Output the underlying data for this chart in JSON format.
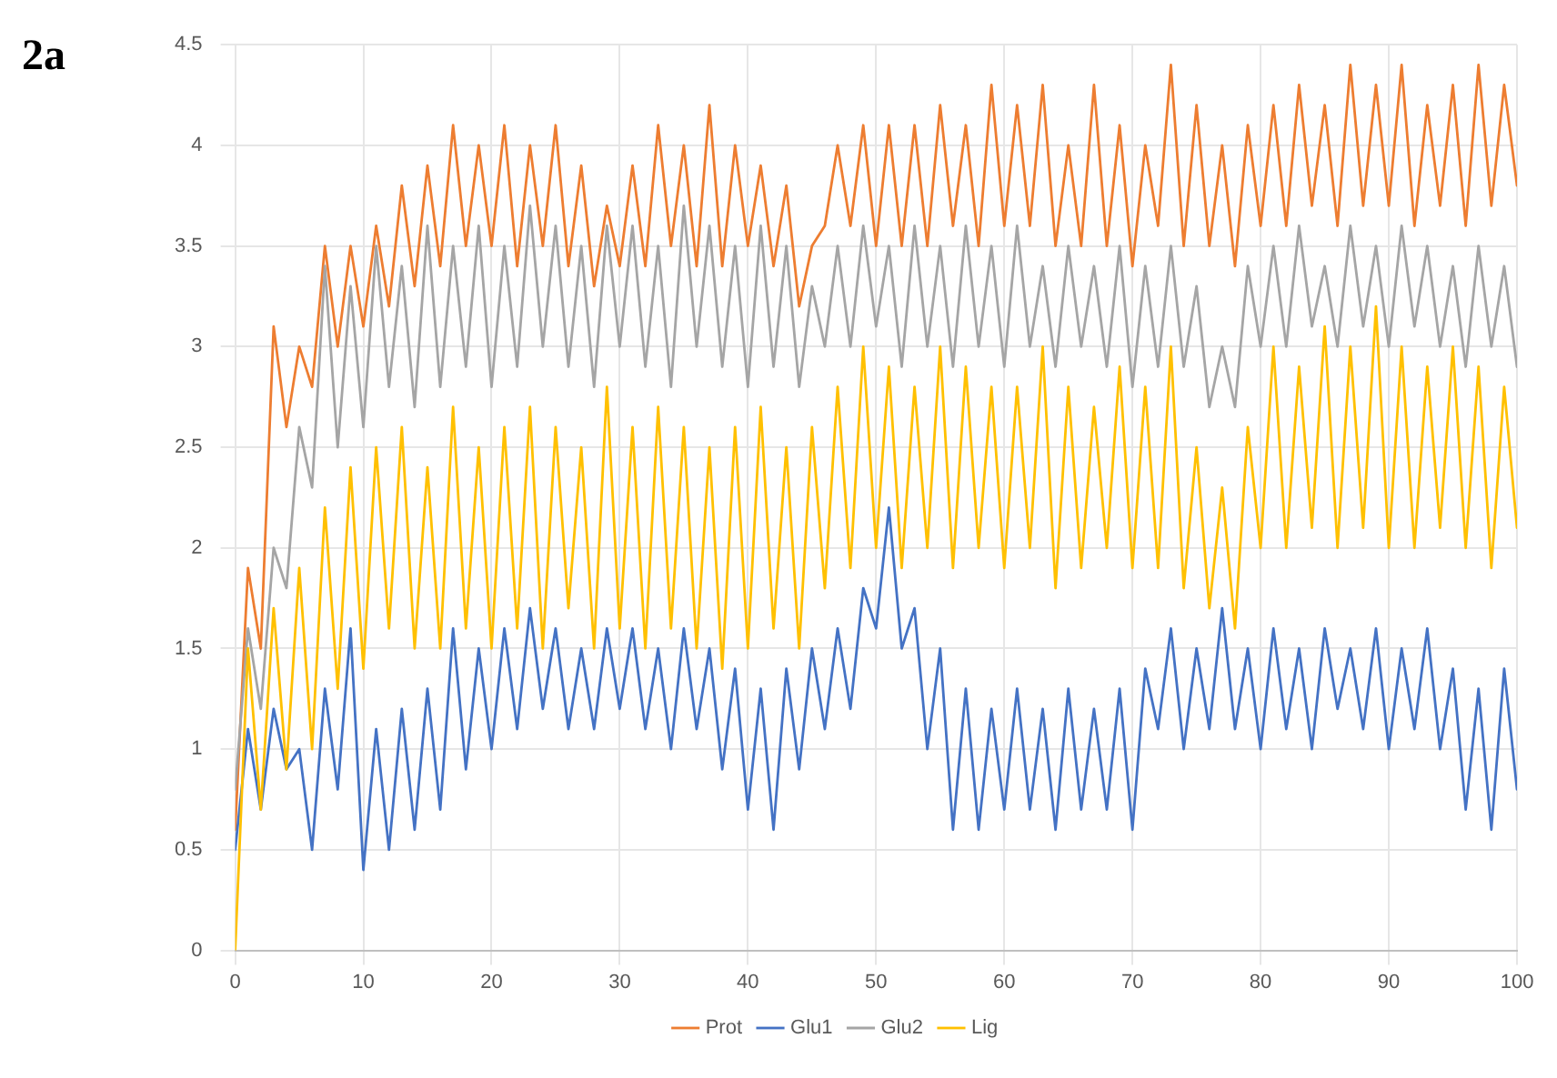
{
  "chart_data": {
    "type": "line",
    "annotations": [
      "2a"
    ],
    "x": [
      0,
      1,
      2,
      3,
      4,
      5,
      6,
      7,
      8,
      9,
      10,
      11,
      12,
      13,
      14,
      15,
      16,
      17,
      18,
      19,
      20,
      21,
      22,
      23,
      24,
      25,
      26,
      27,
      28,
      29,
      30,
      31,
      32,
      33,
      34,
      35,
      36,
      37,
      38,
      39,
      40,
      41,
      42,
      43,
      44,
      45,
      46,
      47,
      48,
      49,
      50,
      51,
      52,
      53,
      54,
      55,
      56,
      57,
      58,
      59,
      60,
      61,
      62,
      63,
      64,
      65,
      66,
      67,
      68,
      69,
      70,
      71,
      72,
      73,
      74,
      75,
      76,
      77,
      78,
      79,
      80,
      81,
      82,
      83,
      84,
      85,
      86,
      87,
      88,
      89,
      90,
      91,
      92,
      93,
      94,
      95,
      96,
      97,
      98,
      99,
      100
    ],
    "series": [
      {
        "name": "Prot",
        "color": "#ed7d31",
        "values": [
          0.6,
          1.9,
          1.5,
          3.1,
          2.6,
          3.0,
          2.8,
          3.5,
          3.0,
          3.5,
          3.1,
          3.6,
          3.2,
          3.8,
          3.3,
          3.9,
          3.4,
          4.1,
          3.5,
          4.0,
          3.5,
          4.1,
          3.4,
          4.0,
          3.5,
          4.1,
          3.4,
          3.9,
          3.3,
          3.7,
          3.4,
          3.9,
          3.4,
          4.1,
          3.5,
          4.0,
          3.4,
          4.2,
          3.4,
          4.0,
          3.5,
          3.9,
          3.4,
          3.8,
          3.2,
          3.5,
          3.6,
          4.0,
          3.6,
          4.1,
          3.5,
          4.1,
          3.5,
          4.1,
          3.5,
          4.2,
          3.6,
          4.1,
          3.5,
          4.3,
          3.6,
          4.2,
          3.6,
          4.3,
          3.5,
          4.0,
          3.5,
          4.3,
          3.5,
          4.1,
          3.4,
          4.0,
          3.6,
          4.4,
          3.5,
          4.2,
          3.5,
          4.0,
          3.4,
          4.1,
          3.6,
          4.2,
          3.6,
          4.3,
          3.7,
          4.2,
          3.6,
          4.4,
          3.7,
          4.3,
          3.7,
          4.4,
          3.6,
          4.2,
          3.7,
          4.3,
          3.6,
          4.4,
          3.7,
          4.3,
          3.8
        ]
      },
      {
        "name": "Glu1",
        "color": "#4472c4",
        "values": [
          0.5,
          1.1,
          0.7,
          1.2,
          0.9,
          1.0,
          0.5,
          1.3,
          0.8,
          1.6,
          0.4,
          1.1,
          0.5,
          1.2,
          0.6,
          1.3,
          0.7,
          1.6,
          0.9,
          1.5,
          1.0,
          1.6,
          1.1,
          1.7,
          1.2,
          1.6,
          1.1,
          1.5,
          1.1,
          1.6,
          1.2,
          1.6,
          1.1,
          1.5,
          1.0,
          1.6,
          1.1,
          1.5,
          0.9,
          1.4,
          0.7,
          1.3,
          0.6,
          1.4,
          0.9,
          1.5,
          1.1,
          1.6,
          1.2,
          1.8,
          1.6,
          2.2,
          1.5,
          1.7,
          1.0,
          1.5,
          0.6,
          1.3,
          0.6,
          1.2,
          0.7,
          1.3,
          0.7,
          1.2,
          0.6,
          1.3,
          0.7,
          1.2,
          0.7,
          1.3,
          0.6,
          1.4,
          1.1,
          1.6,
          1.0,
          1.5,
          1.1,
          1.7,
          1.1,
          1.5,
          1.0,
          1.6,
          1.1,
          1.5,
          1.0,
          1.6,
          1.2,
          1.5,
          1.1,
          1.6,
          1.0,
          1.5,
          1.1,
          1.6,
          1.0,
          1.4,
          0.7,
          1.3,
          0.6,
          1.4,
          0.8
        ]
      },
      {
        "name": "Glu2",
        "color": "#a5a5a5",
        "values": [
          0.8,
          1.6,
          1.2,
          2.0,
          1.8,
          2.6,
          2.3,
          3.4,
          2.5,
          3.3,
          2.6,
          3.5,
          2.8,
          3.4,
          2.7,
          3.6,
          2.8,
          3.5,
          2.9,
          3.6,
          2.8,
          3.5,
          2.9,
          3.7,
          3.0,
          3.6,
          2.9,
          3.5,
          2.8,
          3.6,
          3.0,
          3.6,
          2.9,
          3.5,
          2.8,
          3.7,
          3.0,
          3.6,
          2.9,
          3.5,
          2.8,
          3.6,
          2.9,
          3.5,
          2.8,
          3.3,
          3.0,
          3.5,
          3.0,
          3.6,
          3.1,
          3.5,
          2.9,
          3.6,
          3.0,
          3.5,
          2.9,
          3.6,
          3.0,
          3.5,
          2.9,
          3.6,
          3.0,
          3.4,
          2.9,
          3.5,
          3.0,
          3.4,
          2.9,
          3.5,
          2.8,
          3.4,
          2.9,
          3.5,
          2.9,
          3.3,
          2.7,
          3.0,
          2.7,
          3.4,
          3.0,
          3.5,
          3.0,
          3.6,
          3.1,
          3.4,
          3.0,
          3.6,
          3.1,
          3.5,
          3.0,
          3.6,
          3.1,
          3.5,
          3.0,
          3.4,
          2.9,
          3.5,
          3.0,
          3.4,
          2.9
        ]
      },
      {
        "name": "Lig",
        "color": "#ffc000",
        "values": [
          0.0,
          1.5,
          0.7,
          1.7,
          0.9,
          1.9,
          1.0,
          2.2,
          1.3,
          2.4,
          1.4,
          2.5,
          1.6,
          2.6,
          1.5,
          2.4,
          1.5,
          2.7,
          1.6,
          2.5,
          1.5,
          2.6,
          1.6,
          2.7,
          1.5,
          2.6,
          1.7,
          2.5,
          1.5,
          2.8,
          1.6,
          2.6,
          1.5,
          2.7,
          1.6,
          2.6,
          1.5,
          2.5,
          1.4,
          2.6,
          1.5,
          2.7,
          1.6,
          2.5,
          1.5,
          2.6,
          1.8,
          2.8,
          1.9,
          3.0,
          2.0,
          2.9,
          1.9,
          2.8,
          2.0,
          3.0,
          1.9,
          2.9,
          2.0,
          2.8,
          1.9,
          2.8,
          2.0,
          3.0,
          1.8,
          2.8,
          1.9,
          2.7,
          2.0,
          2.9,
          1.9,
          2.8,
          1.9,
          3.0,
          1.8,
          2.5,
          1.7,
          2.3,
          1.6,
          2.6,
          2.0,
          3.0,
          2.0,
          2.9,
          2.1,
          3.1,
          2.0,
          3.0,
          2.1,
          3.2,
          2.0,
          3.0,
          2.0,
          2.9,
          2.1,
          3.0,
          2.0,
          2.9,
          1.9,
          2.8,
          2.1
        ]
      }
    ],
    "xlim": [
      0,
      100
    ],
    "xticks": [
      0,
      10,
      20,
      30,
      40,
      50,
      60,
      70,
      80,
      90,
      100
    ],
    "ylim": [
      0,
      4.5
    ],
    "yticks": [
      0,
      0.5,
      1,
      1.5,
      2,
      2.5,
      3,
      3.5,
      4,
      4.5
    ],
    "grid": true,
    "legend": "bottom",
    "marker": "none",
    "line_style": "solid"
  }
}
